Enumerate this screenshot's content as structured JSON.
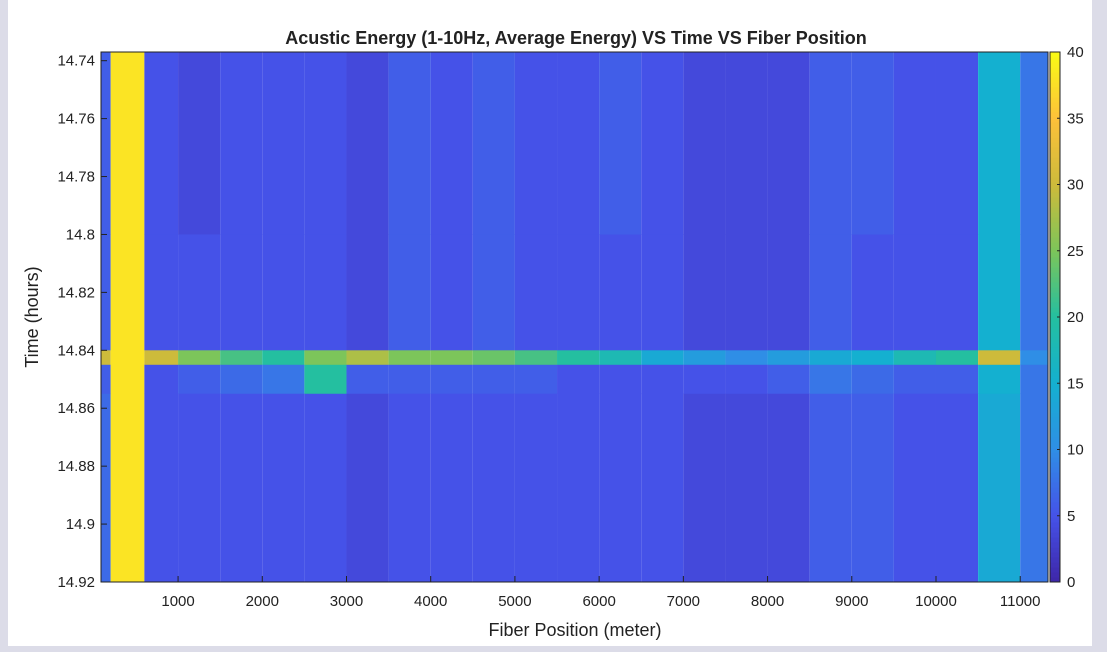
{
  "chart_data": {
    "type": "heatmap",
    "title": "Acustic Energy (1-10Hz, Average Energy) VS Time VS Fiber Position",
    "xlabel": "Fiber Position (meter)",
    "ylabel": "Time (hours)",
    "xlim": [
      85,
      11330
    ],
    "ylim": [
      14.737,
      14.92
    ],
    "y_reversed": true,
    "xticks": [
      1000,
      2000,
      3000,
      4000,
      5000,
      6000,
      7000,
      8000,
      9000,
      10000,
      11000
    ],
    "yticks": [
      14.74,
      14.76,
      14.78,
      14.8,
      14.82,
      14.84,
      14.86,
      14.88,
      14.9,
      14.92
    ],
    "colormap": "parula",
    "clim": [
      0,
      40
    ],
    "cticks": [
      0,
      5,
      10,
      15,
      20,
      25,
      30,
      35,
      40
    ],
    "x_edges": [
      85,
      200,
      600,
      1000,
      1500,
      2000,
      2500,
      3000,
      3500,
      4000,
      4500,
      5000,
      5500,
      6000,
      6500,
      7000,
      7500,
      8000,
      8500,
      9000,
      9500,
      10000,
      10500,
      11000,
      11330
    ],
    "y_edges": [
      14.737,
      14.8,
      14.84,
      14.845,
      14.855,
      14.92
    ],
    "z": [
      [
        6,
        38,
        5,
        4,
        5,
        5,
        5,
        4,
        6,
        5,
        6,
        5,
        5,
        6,
        5,
        4,
        4,
        4,
        6,
        6,
        5,
        5,
        15,
        8
      ],
      [
        6,
        38,
        5,
        5,
        5,
        5,
        5,
        4,
        6,
        5,
        6,
        5,
        5,
        5,
        5,
        4,
        4,
        4,
        6,
        5,
        5,
        5,
        15,
        8
      ],
      [
        30,
        38,
        30,
        25,
        22,
        20,
        25,
        28,
        25,
        25,
        24,
        22,
        20,
        18,
        14,
        12,
        10,
        12,
        14,
        15,
        18,
        20,
        30,
        10
      ],
      [
        6,
        38,
        5,
        6,
        7,
        8,
        20,
        6,
        6,
        6,
        6,
        6,
        5,
        5,
        5,
        5,
        5,
        6,
        8,
        7,
        6,
        6,
        15,
        8
      ],
      [
        7,
        38,
        5,
        5,
        5,
        5,
        5,
        4,
        5,
        5,
        5,
        5,
        5,
        5,
        5,
        4,
        4,
        4,
        6,
        6,
        5,
        5,
        14,
        8
      ]
    ]
  }
}
